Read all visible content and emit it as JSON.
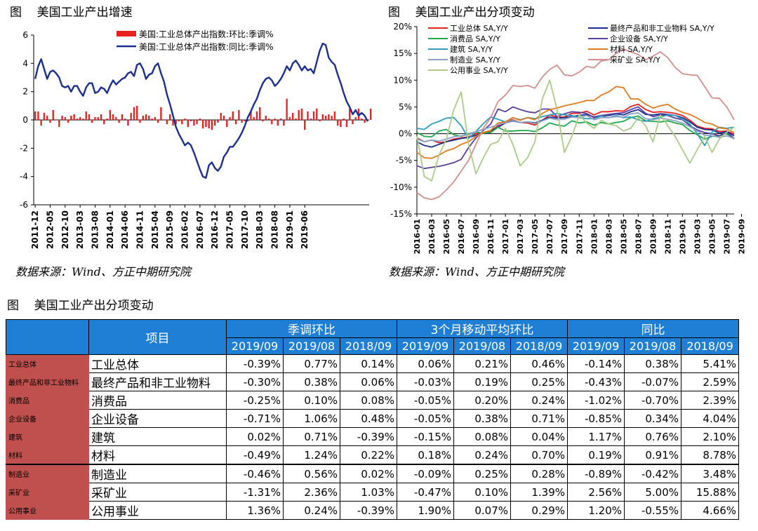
{
  "left_figure": {
    "title": "图    美国工业产出增速",
    "source": "数据来源：Wind、方正中期研究院"
  },
  "right_figure": {
    "title": "图    美国工业产出分项变动",
    "source": "数据来源：Wind、方正中期研究院"
  },
  "table_title": "图    美国工业产出分项变动",
  "chart_data": [
    {
      "type": "bar+line",
      "y_axis": {
        "min": -6,
        "max": 6,
        "step": 2,
        "ticks": [
          "6",
          "4",
          "2",
          "0",
          "-2",
          "-4",
          "-6"
        ]
      },
      "x_ticks": [
        "2011-12",
        "2012-05",
        "2012-10",
        "2013-03",
        "2013-08",
        "2014-01",
        "2014-06",
        "2014-11",
        "2015-04",
        "2015-09",
        "2016-02",
        "2016-07",
        "2016-12",
        "2017-05",
        "2017-10",
        "2018-03",
        "2018-08",
        "2019-01",
        "2019-06"
      ],
      "start": "2011-12",
      "legend_position": "top-right",
      "series": [
        {
          "name": "美国:工业总体产出指数:环比:季调%",
          "kind": "bar",
          "color": "#e8211f",
          "values": [
            0.6,
            0.6,
            -0.4,
            0.5,
            0.3,
            -0.2,
            0.7,
            0.0,
            -0.5,
            0.3,
            0.2,
            -0.2,
            0.3,
            0.4,
            0.1,
            0.2,
            0.1,
            0.6,
            0.4,
            -0.2,
            0.2,
            0.2,
            0.4,
            -0.3,
            0.1,
            0.7,
            0.4,
            0.2,
            -0.2,
            0.4,
            0.1,
            -0.4,
            0.5,
            0.9,
            1.0,
            -0.2,
            0.3,
            0.4,
            0.3,
            0.1,
            0.2,
            -0.2,
            0.9,
            0.0,
            -0.3,
            0.4,
            -0.4,
            -0.3,
            -0.1,
            -0.3,
            0.1,
            -0.5,
            -0.1,
            -0.4,
            -0.3,
            0.1,
            -0.6,
            -0.5,
            -0.6,
            -0.7,
            -0.4,
            -0.2,
            0.5,
            0.3,
            -0.5,
            0.2,
            0.6,
            -0.3,
            0.7,
            -0.2,
            -0.1,
            -0.1,
            0.6,
            0.2,
            0.6,
            0.9,
            -0.1,
            0.3,
            0.1,
            -0.3,
            0.1,
            -0.4,
            0.1,
            -0.4,
            1.5,
            0.2,
            0.5,
            0.1,
            0.7,
            0.8,
            -0.7,
            0.6,
            0.1,
            0.6,
            0.8,
            -0.1,
            0.4,
            0.3,
            0.4,
            0.3,
            0.6,
            -0.4,
            -0.5,
            0.1,
            -0.5,
            0.8,
            -0.3,
            0.2,
            0.8,
            0.1,
            -0.2,
            0.0,
            0.8,
            -0.4
          ]
        },
        {
          "name": "美国:工业总体产出指数:同比:季调%",
          "kind": "line",
          "color": "#1b2f8e",
          "values": [
            2.9,
            3.8,
            4.3,
            3.6,
            2.9,
            3.4,
            3.5,
            3.3,
            3.0,
            2.4,
            2.3,
            2.4,
            2.0,
            2.4,
            2.4,
            2.0,
            1.7,
            2.3,
            2.6,
            2.6,
            1.9,
            2.0,
            2.3,
            2.2,
            1.9,
            2.4,
            2.8,
            2.5,
            2.7,
            2.9,
            3.0,
            3.3,
            3.4,
            3.1,
            3.9,
            4.0,
            3.6,
            2.9,
            3.2,
            3.3,
            3.8,
            4.0,
            3.3,
            2.7,
            1.8,
            1.1,
            0.3,
            -0.5,
            -1.0,
            -1.4,
            -1.8,
            -1.6,
            -1.8,
            -2.3,
            -2.9,
            -3.5,
            -4.0,
            -4.1,
            -3.2,
            -3.0,
            -3.4,
            -3.6,
            -3.3,
            -2.6,
            -2.3,
            -1.9,
            -1.9,
            -1.6,
            -1.3,
            -0.9,
            -0.4,
            0.2,
            0.6,
            1.1,
            1.5,
            2.1,
            2.6,
            2.9,
            3.0,
            2.8,
            2.4,
            2.6,
            2.9,
            3.3,
            3.8,
            3.5,
            4.0,
            4.2,
            3.9,
            3.5,
            3.8,
            3.5,
            3.6,
            3.3,
            4.1,
            4.9,
            5.4,
            5.3,
            4.4,
            4.1,
            3.9,
            3.2,
            2.6,
            1.9,
            1.3,
            0.9,
            0.4,
            0.7,
            0.3,
            0.5,
            0.3,
            -0.1
          ]
        }
      ]
    },
    {
      "type": "line",
      "y_axis": {
        "min": -15,
        "max": 20,
        "step": 5,
        "ticks": [
          "20%",
          "15%",
          "10%",
          "5%",
          "0%",
          "-5%",
          "-10%",
          "-15%"
        ]
      },
      "x_ticks": [
        "2016-01",
        "2016-03",
        "2016-05",
        "2016-07",
        "2016-09",
        "2016-11",
        "2017-01",
        "2017-03",
        "2017-05",
        "2017-07",
        "2017-09",
        "2017-11",
        "2018-01",
        "2018-03",
        "2018-05",
        "2018-07",
        "2018-09",
        "2018-11",
        "2019-01",
        "2019-03",
        "2019-05",
        "2019-07",
        "2019-09"
      ],
      "legend_position": "top",
      "series": [
        {
          "name": "工业总体 SA,Y/Y",
          "color": "#e8211f",
          "values": [
            -0.8,
            -1.5,
            -1.2,
            -1.7,
            -1.5,
            -1.0,
            -0.8,
            -0.6,
            0.0,
            0.1,
            0.3,
            1.5,
            2.2,
            2.6,
            2.1,
            2.0,
            1.6,
            2.5,
            3.5,
            3.1,
            3.1,
            3.8,
            3.8,
            4.2,
            3.5,
            4.1,
            4.1,
            4.3,
            4.2,
            5.1,
            5.5,
            4.5,
            4.0,
            4.1,
            4.0,
            3.8,
            3.4,
            2.5,
            1.4,
            1.0,
            0.9,
            0.4,
            0.5,
            -0.1
          ]
        },
        {
          "name": "最终产品和非工业物料 SA,Y/Y",
          "color": "#1b2f8e",
          "values": [
            -1.5,
            -2.2,
            -2.5,
            -2.0,
            -1.5,
            -1.2,
            -0.9,
            -0.7,
            -0.3,
            0.1,
            0.6,
            1.2,
            2.0,
            2.4,
            2.1,
            2.2,
            2.0,
            2.5,
            3.1,
            2.9,
            3.0,
            3.2,
            3.4,
            3.6,
            3.1,
            3.4,
            3.4,
            3.7,
            3.5,
            4.1,
            4.5,
            3.6,
            3.5,
            3.7,
            3.6,
            3.4,
            3.0,
            2.2,
            1.2,
            0.8,
            0.7,
            0.1,
            0.4,
            -0.4
          ]
        },
        {
          "name": "消费品 SA,Y/Y",
          "color": "#1fa84a",
          "values": [
            0.2,
            -0.5,
            -0.6,
            0.5,
            0.8,
            -0.2,
            -0.5,
            0.0,
            0.3,
            0.1,
            0.2,
            1.2,
            0.5,
            0.5,
            0.6,
            0.6,
            0.4,
            1.1,
            2.0,
            1.6,
            1.4,
            2.4,
            2.0,
            2.2,
            1.6,
            2.1,
            1.8,
            2.1,
            2.3,
            3.0,
            3.3,
            2.4,
            2.3,
            2.2,
            2.4,
            2.0,
            1.7,
            0.6,
            -0.2,
            -1.0,
            -0.5,
            -0.4,
            0.0,
            -1.0
          ]
        },
        {
          "name": "企业设备 SA,Y/Y",
          "color": "#5a3ea0",
          "values": [
            -6.0,
            -6.5,
            -6.3,
            -6.1,
            -5.8,
            -5.4,
            -4.8,
            -2.6,
            -0.8,
            0.6,
            1.8,
            4.6,
            4.1,
            5.0,
            4.5,
            4.1,
            3.9,
            4.6,
            4.6,
            3.2,
            3.7,
            4.1,
            4.0,
            3.8,
            3.0,
            3.4,
            3.6,
            3.8,
            3.9,
            4.5,
            5.0,
            3.8,
            3.2,
            3.5,
            3.4,
            2.9,
            2.6,
            1.5,
            0.7,
            0.2,
            0.0,
            -0.4,
            0.3,
            -0.9
          ]
        },
        {
          "name": "建筑 SA,Y/Y",
          "color": "#2f9dbb",
          "values": [
            1.0,
            0.8,
            1.8,
            2.3,
            2.9,
            3.0,
            1.5,
            -0.9,
            0.4,
            1.9,
            3.1,
            2.7,
            2.2,
            3.0,
            2.6,
            3.0,
            2.8,
            3.2,
            3.5,
            3.8,
            3.5,
            3.4,
            3.0,
            2.8,
            2.8,
            3.3,
            3.0,
            3.4,
            3.0,
            3.1,
            2.6,
            2.3,
            2.8,
            3.1,
            3.5,
            3.4,
            2.7,
            1.8,
            0.0,
            -2.2,
            0.3,
            1.2,
            1.0,
            1.2
          ]
        },
        {
          "name": "材料 SA,Y/Y",
          "color": "#e07b1f",
          "values": [
            -3.5,
            -4.5,
            -4.6,
            -4.0,
            -3.2,
            -2.8,
            -2.0,
            -1.5,
            -0.5,
            0.2,
            0.6,
            2.0,
            2.2,
            3.0,
            2.5,
            3.0,
            2.6,
            3.8,
            4.5,
            4.8,
            5.2,
            5.5,
            5.8,
            6.2,
            6.2,
            7.2,
            7.8,
            8.8,
            8.6,
            6.5,
            6.5,
            5.5,
            4.8,
            5.2,
            5.5,
            4.6,
            4.0,
            3.6,
            2.9,
            2.1,
            1.8,
            1.1,
            0.9,
            0.2
          ]
        },
        {
          "name": "制造业 SA,Y/Y",
          "color": "#8da2c7",
          "values": [
            -1.0,
            -1.5,
            -1.2,
            -1.4,
            -1.0,
            -0.6,
            -0.4,
            -0.2,
            0.4,
            0.8,
            1.2,
            1.7,
            2.0,
            2.5,
            2.1,
            2.2,
            1.9,
            2.4,
            2.9,
            2.6,
            2.7,
            3.1,
            3.0,
            3.4,
            2.6,
            3.0,
            3.0,
            3.2,
            3.1,
            3.7,
            3.9,
            2.8,
            2.6,
            2.9,
            2.7,
            2.4,
            2.0,
            1.3,
            0.5,
            -0.3,
            -0.4,
            -0.7,
            -0.4,
            -0.9
          ]
        },
        {
          "name": "采矿业 SA,Y/Y",
          "color": "#d48e8c",
          "values": [
            -11.0,
            -12.0,
            -12.3,
            -11.8,
            -10.5,
            -9.0,
            -7.0,
            -5.0,
            -2.0,
            1.0,
            3.0,
            6.0,
            7.2,
            9.0,
            8.8,
            9.0,
            8.5,
            10.6,
            12.0,
            12.8,
            11.0,
            10.8,
            11.5,
            12.6,
            12.3,
            13.6,
            13.8,
            15.0,
            15.8,
            15.3,
            14.8,
            13.8,
            14.5,
            15.3,
            14.2,
            12.4,
            11.2,
            11.0,
            10.9,
            8.8,
            6.7,
            6.6,
            5.0,
            2.6
          ]
        },
        {
          "name": "公用事业 SA,Y/Y",
          "color": "#a9cc86",
          "values": [
            -0.5,
            -8.0,
            -8.8,
            -4.0,
            -1.0,
            4.5,
            7.8,
            -2.0,
            -7.5,
            -4.5,
            -2.0,
            -1.5,
            1.0,
            -2.0,
            -6.0,
            -4.5,
            -1.5,
            6.5,
            10.0,
            4.5,
            -3.5,
            -0.5,
            3.5,
            2.0,
            1.0,
            2.5,
            1.8,
            1.5,
            0.5,
            1.0,
            3.0,
            1.5,
            -1.5,
            3.5,
            1.5,
            -0.5,
            -3.0,
            -5.5,
            -3.0,
            -0.5,
            -3.5,
            -1.0,
            0.3,
            1.2
          ]
        }
      ]
    }
  ],
  "table": {
    "header_item": "项目",
    "groups": [
      "季调环比",
      "3个月移动平均环比",
      "同比"
    ],
    "periods": [
      "2019/09",
      "2019/08",
      "2018/09",
      "2019/09",
      "2019/08",
      "2018/09",
      "2019/09",
      "2019/08",
      "2018/09"
    ],
    "rows": [
      {
        "code": "工业总体",
        "name": "工业总体",
        "values": [
          "-0.39%",
          "0.77%",
          "0.14%",
          "0.06%",
          "0.21%",
          "0.46%",
          "-0.14%",
          "0.38%",
          "5.41%"
        ]
      },
      {
        "code": "最终产品和非工业物料",
        "name": "最终产品和非工业物料",
        "values": [
          "-0.30%",
          "0.38%",
          "0.06%",
          "-0.03%",
          "0.19%",
          "0.25%",
          "-0.43%",
          "-0.07%",
          "2.59%"
        ]
      },
      {
        "code": "消费品",
        "name": "消费品",
        "values": [
          "-0.25%",
          "0.10%",
          "0.08%",
          "-0.05%",
          "0.20%",
          "0.24%",
          "-1.02%",
          "-0.70%",
          "2.39%"
        ]
      },
      {
        "code": "企业设备",
        "name": "企业设备",
        "values": [
          "-0.71%",
          "1.06%",
          "0.48%",
          "-0.05%",
          "0.38%",
          "0.71%",
          "-0.85%",
          "0.34%",
          "4.04%"
        ]
      },
      {
        "code": "建筑",
        "name": "建筑",
        "values": [
          "0.02%",
          "0.71%",
          "-0.39%",
          "-0.15%",
          "0.08%",
          "0.04%",
          "1.17%",
          "0.76%",
          "2.10%"
        ]
      },
      {
        "code": "材料",
        "name": "材料",
        "values": [
          "-0.49%",
          "1.24%",
          "0.22%",
          "0.18%",
          "0.24%",
          "0.70%",
          "0.19%",
          "0.91%",
          "8.78%"
        ]
      },
      {
        "code": "制造业",
        "name": "制造业",
        "values": [
          "-0.46%",
          "0.56%",
          "0.02%",
          "-0.09%",
          "0.25%",
          "0.28%",
          "-0.89%",
          "-0.42%",
          "3.48%"
        ]
      },
      {
        "code": "采矿业",
        "name": "采矿业",
        "values": [
          "-1.31%",
          "2.36%",
          "1.03%",
          "-0.47%",
          "0.10%",
          "1.39%",
          "2.56%",
          "5.00%",
          "15.88%"
        ]
      },
      {
        "code": "公用事业",
        "name": "公用事业",
        "values": [
          "1.36%",
          "0.24%",
          "-0.39%",
          "1.90%",
          "0.07%",
          "0.29%",
          "1.20%",
          "-0.55%",
          "4.66%"
        ]
      }
    ]
  }
}
